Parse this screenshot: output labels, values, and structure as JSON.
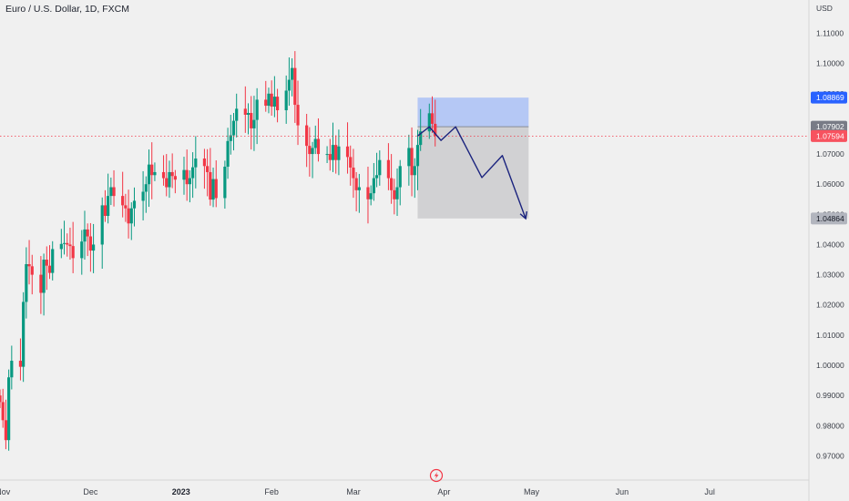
{
  "header": {
    "title": "Euro / U.S. Dollar, 1D, FXCM"
  },
  "logo_icon": "tradingview-logo-icon",
  "chart_data": {
    "type": "candlestick",
    "currency": "USD",
    "ylim": [
      0.9665,
      1.1165
    ],
    "y_ticks": [
      {
        "value": 1.11,
        "label": "1.11000"
      },
      {
        "value": 1.1,
        "label": "1.10000"
      },
      {
        "value": 1.09,
        "label": "1.09000"
      },
      {
        "value": 1.08,
        "label": "1.08000"
      },
      {
        "value": 1.07,
        "label": "1.07000"
      },
      {
        "value": 1.06,
        "label": "1.06000"
      },
      {
        "value": 1.05,
        "label": "1.05000"
      },
      {
        "value": 1.04,
        "label": "1.04000"
      },
      {
        "value": 1.03,
        "label": "1.03000"
      },
      {
        "value": 1.02,
        "label": "1.02000"
      },
      {
        "value": 1.01,
        "label": "1.01000"
      },
      {
        "value": 1.0,
        "label": "1.00000"
      },
      {
        "value": 0.99,
        "label": "0.99000"
      },
      {
        "value": 0.98,
        "label": "0.98000"
      },
      {
        "value": 0.97,
        "label": "0.97000"
      }
    ],
    "x_start": "2022-10-31",
    "x_end": "2023-07-20",
    "x_ticks": [
      {
        "date": "2022-11-01",
        "label": "Nov",
        "bold": false
      },
      {
        "date": "2022-12-01",
        "label": "Dec",
        "bold": false
      },
      {
        "date": "2023-01-01",
        "label": "2023",
        "bold": true
      },
      {
        "date": "2023-02-01",
        "label": "Feb",
        "bold": false
      },
      {
        "date": "2023-03-01",
        "label": "Mar",
        "bold": false
      },
      {
        "date": "2023-04-01",
        "label": "Apr",
        "bold": false
      },
      {
        "date": "2023-05-01",
        "label": "May",
        "bold": false
      },
      {
        "date": "2023-06-01",
        "label": "Jun",
        "bold": false
      },
      {
        "date": "2023-07-01",
        "label": "Jul",
        "bold": false
      }
    ],
    "closes": [
      0.9878,
      0.9818,
      0.9752,
      0.996,
      1.0015,
      0.9995,
      1.021,
      1.0335,
      1.0328,
      1.03,
      1.024,
      1.035,
      1.033,
      1.0306,
      1.0385,
      1.0402,
      1.0405,
      1.04,
      1.0395,
      1.0355,
      1.041,
      1.045,
      1.0427,
      1.038,
      1.04,
      1.053,
      1.0495,
      1.0561,
      1.059,
      1.0561,
      1.053,
      1.052,
      1.047,
      1.052,
      1.0545,
      1.0575,
      1.06,
      1.0665,
      1.063,
      1.064,
      1.062,
      1.059,
      1.064,
      1.0627,
      1.0615,
      1.0647,
      1.06,
      1.062,
      1.0656,
      1.0685,
      1.066,
      1.064,
      1.0549,
      1.0617,
      1.0554,
      1.0658,
      1.0743,
      1.0762,
      1.081,
      1.085,
      1.083,
      1.0836,
      1.0785,
      1.0813,
      1.088,
      1.086,
      1.09,
      1.0857,
      1.089,
      1.0845,
      1.091,
      1.0946,
      1.0985,
      1.0863,
      1.0795,
      1.0727,
      1.07,
      1.072,
      1.075,
      1.07,
      1.07,
      1.068,
      1.073,
      1.068,
      1.0725,
      1.069,
      1.0655,
      1.062,
      1.058,
      1.059,
      1.055,
      1.057,
      1.062,
      1.063,
      1.068,
      1.062,
      1.058,
      1.055,
      1.059,
      1.066,
      1.072,
      1.063,
      1.066,
      1.073,
      1.0775,
      1.0835,
      1.08,
      1.076
    ],
    "open_first": 0.99,
    "price_labels": [
      {
        "value": 1.08869,
        "label": "1.08869",
        "bg": "#2962ff",
        "fg": "#ffffff"
      },
      {
        "value": 1.07902,
        "label": "1.07902",
        "bg": "#787b86",
        "fg": "#ffffff"
      },
      {
        "value": 1.07594,
        "label": "1.07594",
        "bg": "#f7525f",
        "fg": "#ffffff"
      },
      {
        "value": 1.04864,
        "label": "1.04864",
        "bg": "#b2b5be",
        "fg": "#131722"
      }
    ],
    "current_price": 1.07594,
    "short_position": {
      "entry": 1.07902,
      "stop": 1.08869,
      "target": 1.04864,
      "start_date": "2023-03-23",
      "end_date": "2023-04-30",
      "stop_zone_color": "#b5c8f5",
      "target_zone_color": "#d1d1d3"
    },
    "projection_path": [
      {
        "date": "2023-03-23",
        "value": 1.076
      },
      {
        "date": "2023-03-27",
        "value": 1.079
      },
      {
        "date": "2023-03-31",
        "value": 1.0745
      },
      {
        "date": "2023-04-05",
        "value": 1.079
      },
      {
        "date": "2023-04-14",
        "value": 1.0622
      },
      {
        "date": "2023-04-21",
        "value": 1.0695
      },
      {
        "date": "2023-04-29",
        "value": 1.0486
      }
    ],
    "colors": {
      "bull": "#089981",
      "bear": "#f23645",
      "projection": "#1a237e",
      "current_line": "#f23645"
    }
  }
}
